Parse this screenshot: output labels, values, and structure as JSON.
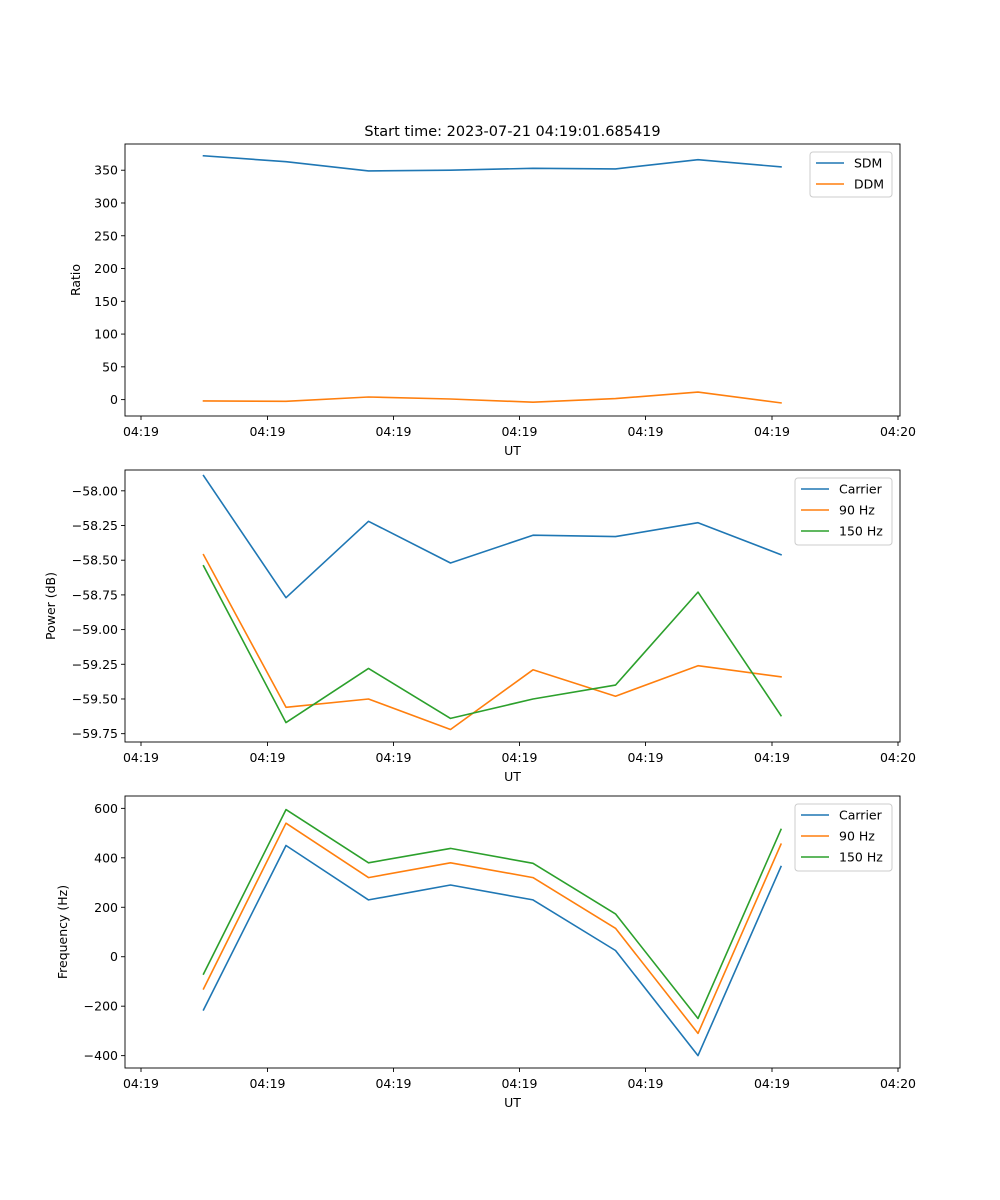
{
  "figure": {
    "title": "Start time: 2023-07-21 04:19:01.685419"
  },
  "chart_data": [
    {
      "type": "line",
      "title": "Start time: 2023-07-21 04:19:01.685419",
      "xlabel": "UT",
      "ylabel": "Ratio",
      "x_tick_labels": [
        "04:19",
        "04:19",
        "04:19",
        "04:19",
        "04:19",
        "04:19",
        "04:20"
      ],
      "y_ticks": [
        0,
        50,
        100,
        150,
        200,
        250,
        300,
        350
      ],
      "y_tick_labels": [
        "0",
        "50",
        "100",
        "150",
        "200",
        "250",
        "300",
        "350"
      ],
      "ylim": [
        -25,
        390
      ],
      "legend_position": "top-right",
      "x_index": [
        1,
        2,
        3,
        4,
        5,
        6,
        7,
        8
      ],
      "series": [
        {
          "name": "SDM",
          "color": "#1f77b4",
          "values": [
            372,
            363,
            349,
            350,
            353,
            352,
            366,
            355
          ]
        },
        {
          "name": "DDM",
          "color": "#ff7f0e",
          "values": [
            -2,
            -2.5,
            4,
            1,
            -4,
            1.5,
            11.5,
            -5
          ]
        }
      ]
    },
    {
      "type": "line",
      "title": "",
      "xlabel": "UT",
      "ylabel": "Power (dB)",
      "x_tick_labels": [
        "04:19",
        "04:19",
        "04:19",
        "04:19",
        "04:19",
        "04:19",
        "04:20"
      ],
      "y_ticks": [
        -58.0,
        -58.25,
        -58.5,
        -58.75,
        -59.0,
        -59.25,
        -59.5,
        -59.75
      ],
      "y_tick_labels": [
        "−58.00",
        "−58.25",
        "−58.50",
        "−58.75",
        "−59.00",
        "−59.25",
        "−59.50",
        "−59.75"
      ],
      "ylim": [
        -59.81,
        -57.85
      ],
      "legend_position": "top-right",
      "x_index": [
        1,
        2,
        3,
        4,
        5,
        6,
        7,
        8
      ],
      "series": [
        {
          "name": "Carrier",
          "color": "#1f77b4",
          "values": [
            -57.89,
            -58.77,
            -58.22,
            -58.52,
            -58.32,
            -58.33,
            -58.23,
            -58.46
          ]
        },
        {
          "name": "90 Hz",
          "color": "#ff7f0e",
          "values": [
            -58.46,
            -59.56,
            -59.5,
            -59.72,
            -59.29,
            -59.48,
            -59.26,
            -59.34
          ]
        },
        {
          "name": "150 Hz",
          "color": "#2ca02c",
          "values": [
            -58.54,
            -59.67,
            -59.28,
            -59.64,
            -59.5,
            -59.4,
            -58.73,
            -59.62
          ]
        }
      ]
    },
    {
      "type": "line",
      "title": "",
      "xlabel": "UT",
      "ylabel": "Frequency (Hz)",
      "x_tick_labels": [
        "04:19",
        "04:19",
        "04:19",
        "04:19",
        "04:19",
        "04:19",
        "04:20"
      ],
      "y_ticks": [
        600,
        400,
        200,
        0,
        -200,
        -400
      ],
      "y_tick_labels": [
        "600",
        "400",
        "200",
        "0",
        "−200",
        "−400"
      ],
      "ylim": [
        -450,
        650
      ],
      "legend_position": "top-right",
      "x_index": [
        1,
        2,
        3,
        4,
        5,
        6,
        7,
        8
      ],
      "series": [
        {
          "name": "Carrier",
          "color": "#1f77b4",
          "values": [
            -215,
            450,
            230,
            290,
            230,
            25,
            -400,
            365
          ]
        },
        {
          "name": "90 Hz",
          "color": "#ff7f0e",
          "values": [
            -130,
            540,
            320,
            380,
            320,
            115,
            -310,
            455
          ]
        },
        {
          "name": "150 Hz",
          "color": "#2ca02c",
          "values": [
            -70,
            595,
            380,
            438,
            378,
            173,
            -250,
            515
          ]
        }
      ]
    }
  ]
}
